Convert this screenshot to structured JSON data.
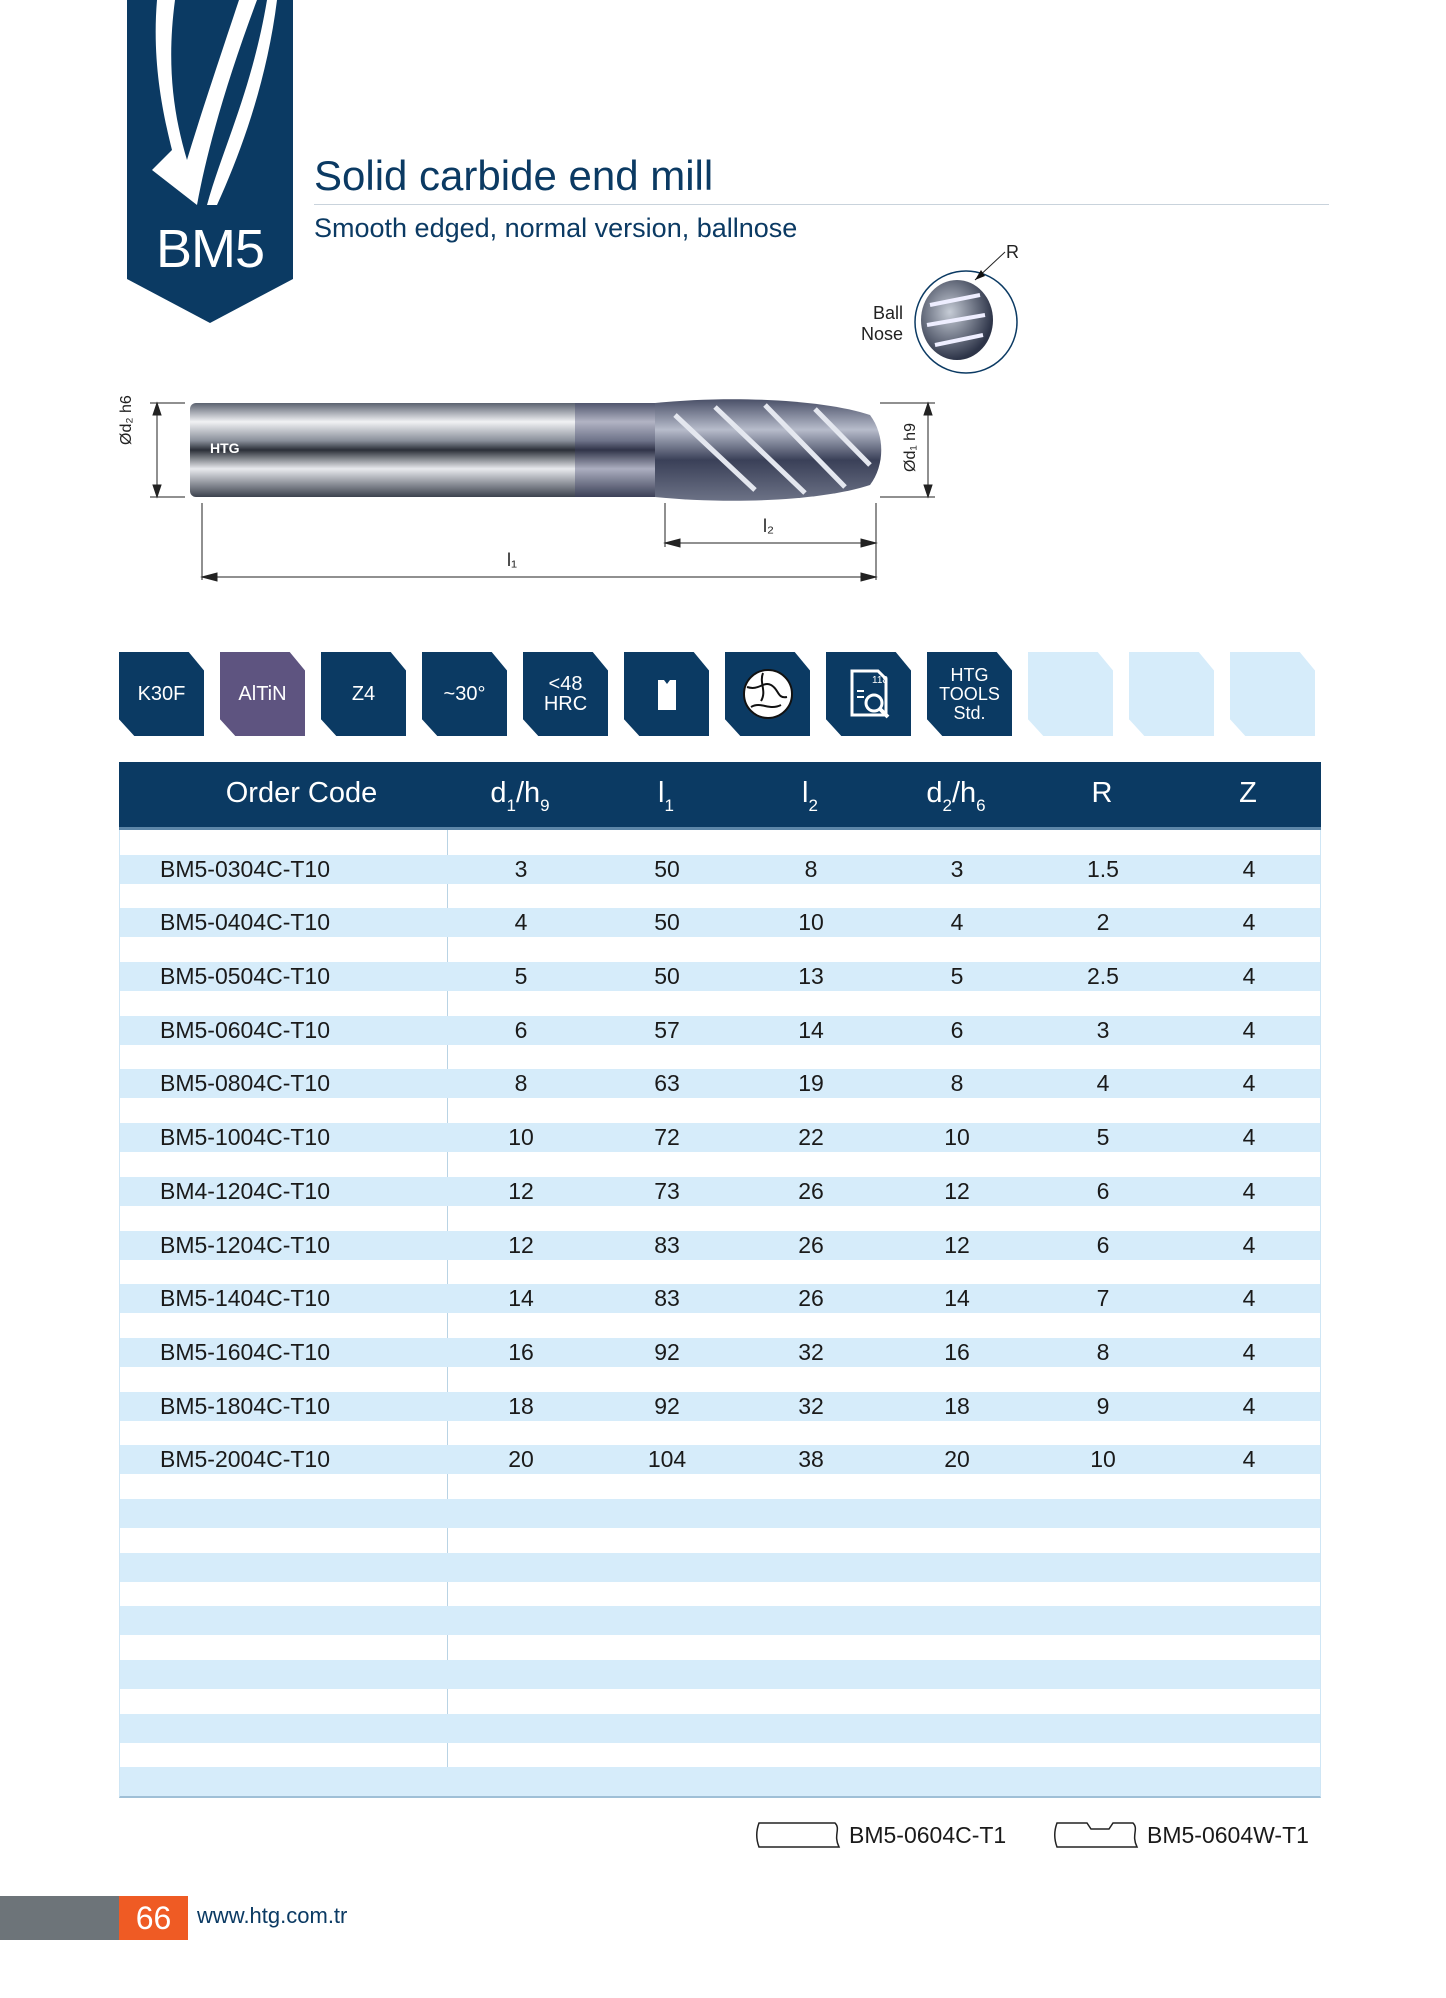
{
  "header": {
    "badge": "BM5",
    "title": "Solid carbide end mill",
    "subtitle": "Smooth edged, normal version, ballnose"
  },
  "drawing": {
    "ball_nose_label_1": "Ball",
    "ball_nose_label_2": "Nose",
    "radius_label": "R",
    "shank_dia": "Ød₂ h6",
    "cut_dia": "Ød₁ h9",
    "l1": "l₁",
    "l2": "l₂",
    "logo": "HTG"
  },
  "icons": [
    {
      "label": "K30F",
      "color": "#0b3a63"
    },
    {
      "label": "AlTiN",
      "color": "#5e5480"
    },
    {
      "label": "Z4",
      "color": "#0b3a63"
    },
    {
      "label": "~30°",
      "color": "#0b3a63"
    },
    {
      "label1": "<48",
      "label2": "HRC",
      "color": "#0b3a63"
    },
    {
      "icon": "shank-icon"
    },
    {
      "icon": "material-globe-icon"
    },
    {
      "icon": "catalog-page-search-icon",
      "page": "118"
    },
    {
      "label1": "HTG",
      "label2": "TOOLS",
      "label3": "Std."
    }
  ],
  "table": {
    "headers": {
      "code": "Order Code",
      "d1": "d",
      "d1_sub": "1",
      "d1_h": "/h",
      "d1_h_sub": "9",
      "l1": "l",
      "l1_sub": "1",
      "l2": "l",
      "l2_sub": "2",
      "d2": "d",
      "d2_sub": "2",
      "d2_h": "/h",
      "d2_h_sub": "6",
      "r": "R",
      "z": "Z"
    },
    "rows": [
      [
        "BM5-0304C-T10",
        "3",
        "50",
        "8",
        "3",
        "1.5",
        "4"
      ],
      [
        "BM5-0404C-T10",
        "4",
        "50",
        "10",
        "4",
        "2",
        "4"
      ],
      [
        "BM5-0504C-T10",
        "5",
        "50",
        "13",
        "5",
        "2.5",
        "4"
      ],
      [
        "BM5-0604C-T10",
        "6",
        "57",
        "14",
        "6",
        "3",
        "4"
      ],
      [
        "BM5-0804C-T10",
        "8",
        "63",
        "19",
        "8",
        "4",
        "4"
      ],
      [
        "BM5-1004C-T10",
        "10",
        "72",
        "22",
        "10",
        "5",
        "4"
      ],
      [
        "BM4-1204C-T10",
        "12",
        "73",
        "26",
        "12",
        "6",
        "4"
      ],
      [
        "BM5-1204C-T10",
        "12",
        "83",
        "26",
        "12",
        "6",
        "4"
      ],
      [
        "BM5-1404C-T10",
        "14",
        "83",
        "26",
        "14",
        "7",
        "4"
      ],
      [
        "BM5-1604C-T10",
        "16",
        "92",
        "32",
        "16",
        "8",
        "4"
      ],
      [
        "BM5-1804C-T10",
        "18",
        "92",
        "32",
        "18",
        "9",
        "4"
      ],
      [
        "BM5-2004C-T10",
        "20",
        "104",
        "38",
        "20",
        "10",
        "4"
      ]
    ],
    "empty_rows": 6
  },
  "variants": [
    {
      "code": "BM5-0604C-T1",
      "icon": "plain-shank-icon"
    },
    {
      "code": "BM5-0604W-T1",
      "icon": "weldon-shank-icon"
    }
  ],
  "footer": {
    "page": "66",
    "url": "www.htg.com.tr"
  },
  "colors": {
    "navy": "#0b3a63",
    "purple": "#5e5480",
    "light_blue": "#d6ecfa",
    "orange": "#ef5b24"
  }
}
